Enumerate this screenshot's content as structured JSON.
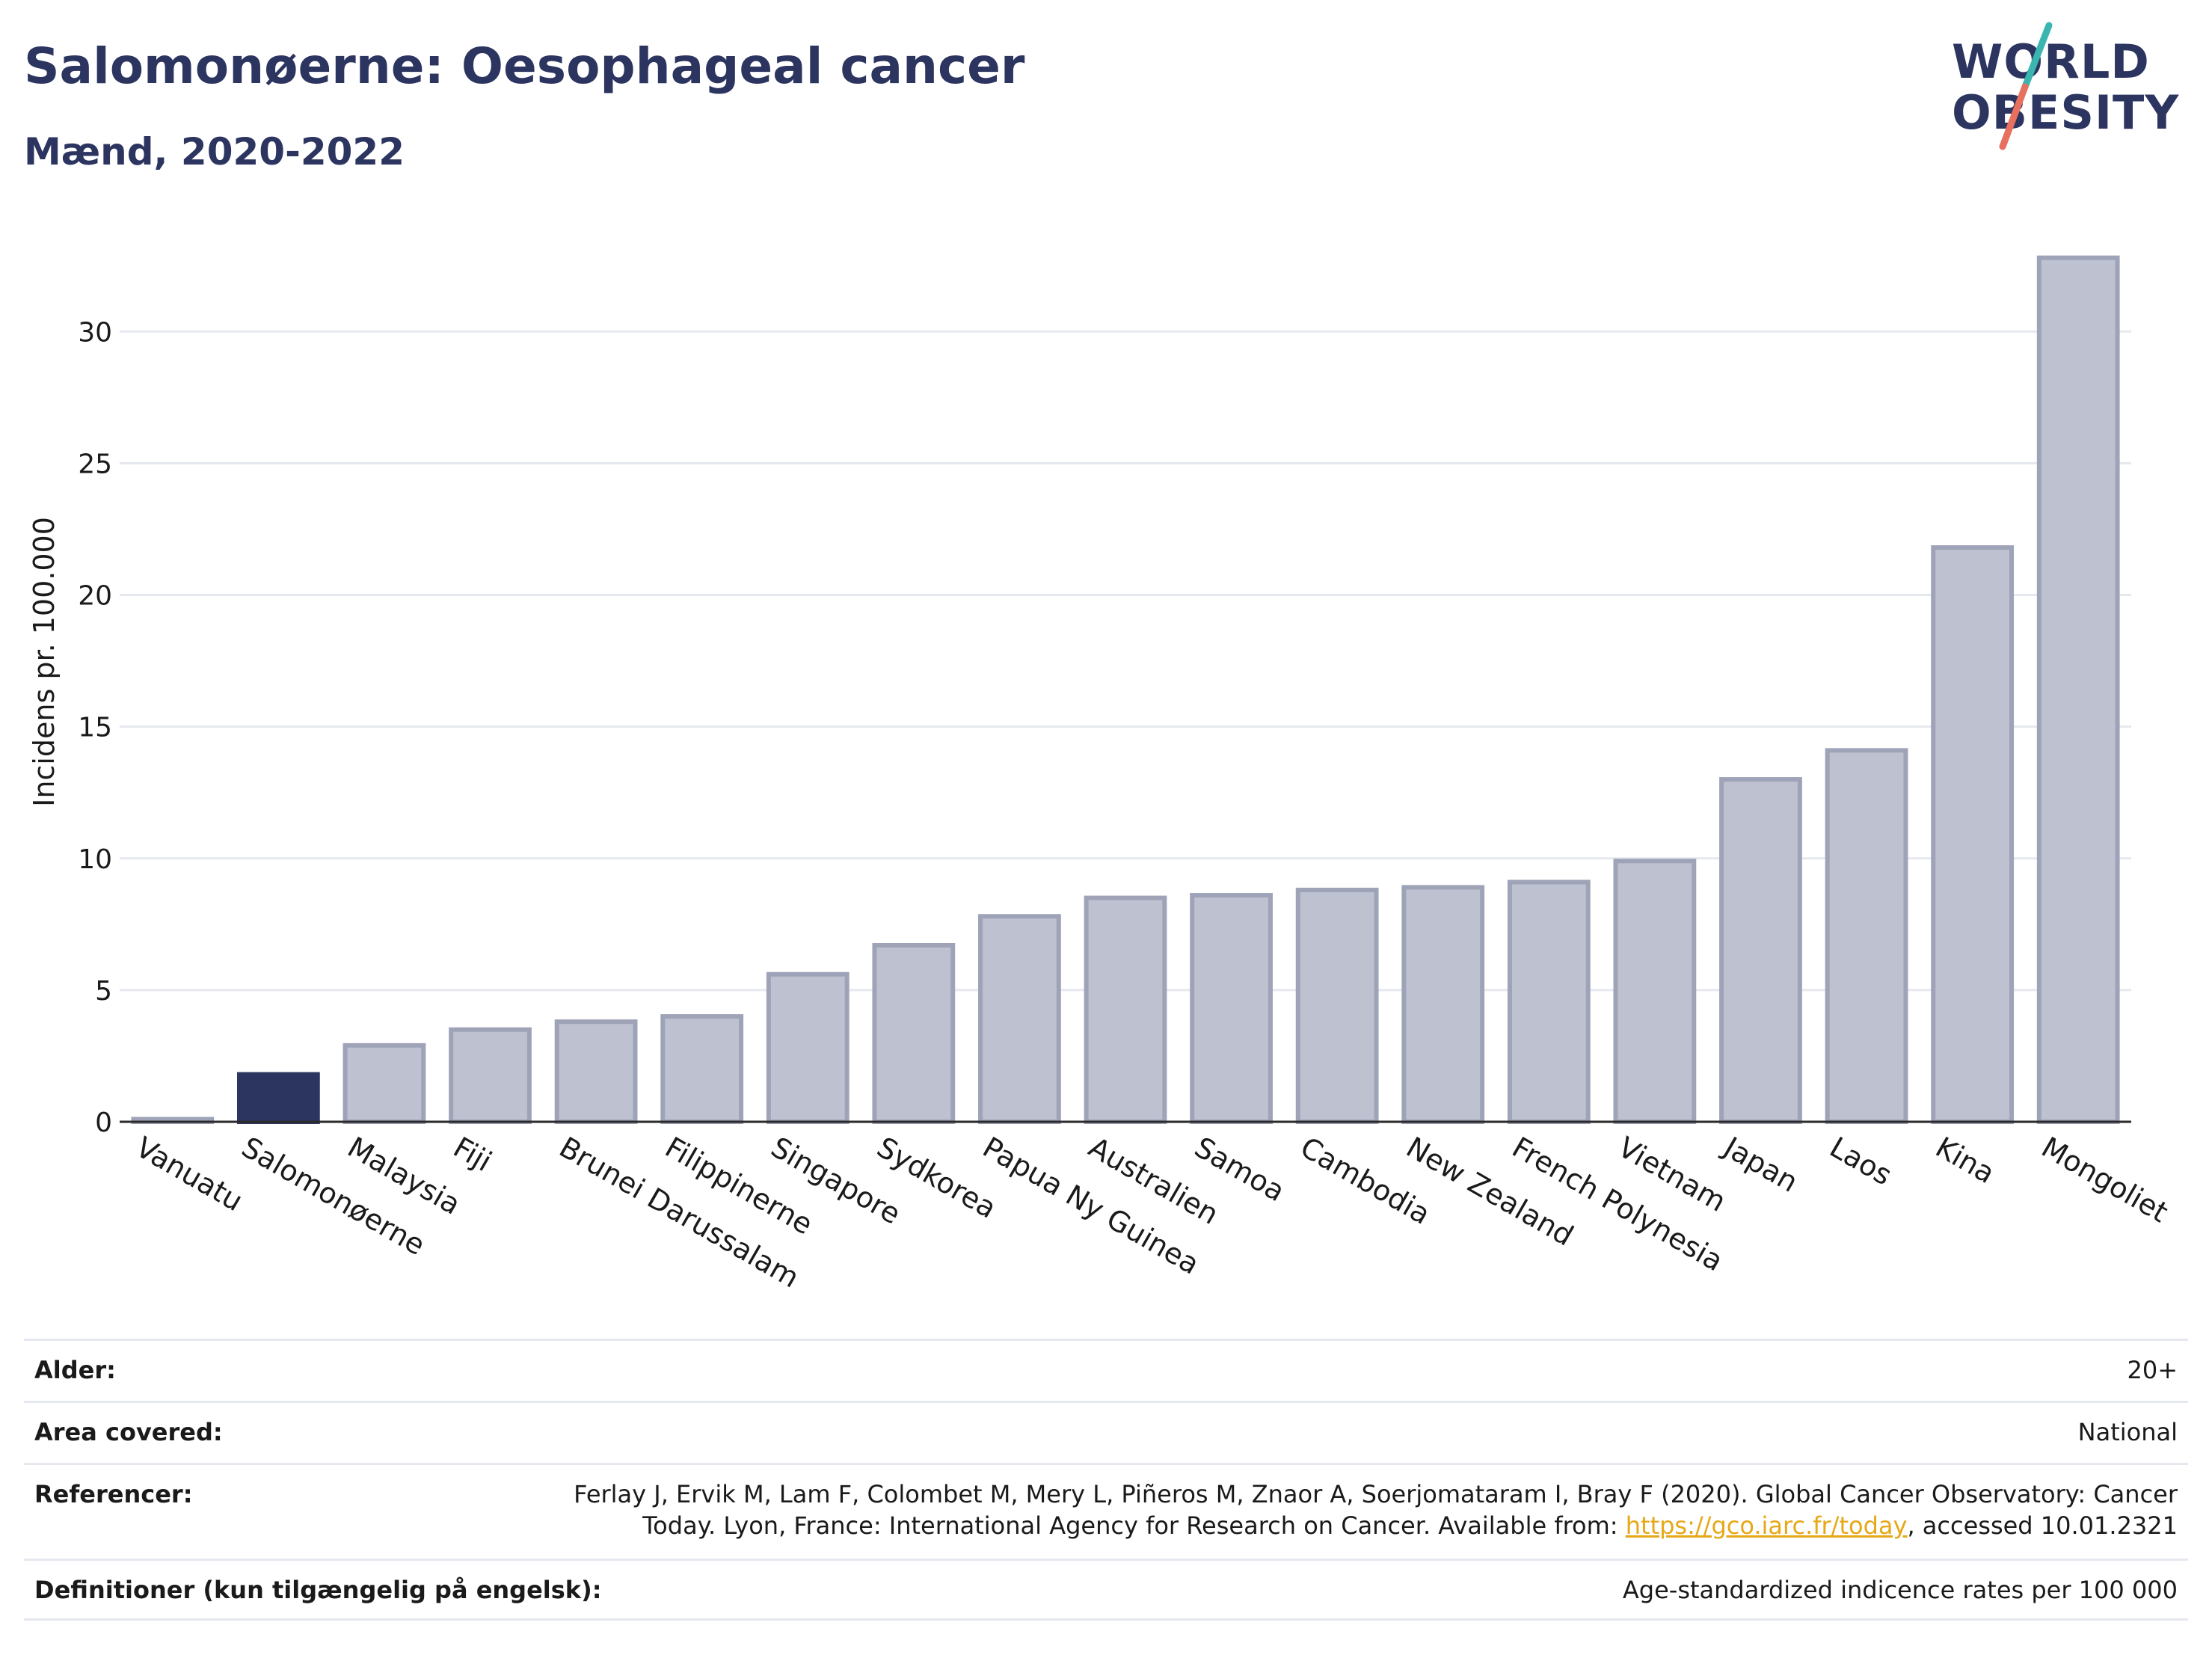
{
  "header": {
    "title": "Salomonøerne: Oesophageal cancer",
    "subtitle": "Mænd, 2020-2022"
  },
  "logo": {
    "line1": "WORLD",
    "line2": "OBESITY",
    "colors": {
      "text": "#2c3560",
      "slash_top": "#3ab5b0",
      "slash_bottom": "#e8705f"
    }
  },
  "chart_data": {
    "type": "bar",
    "ylabel": "Incidens pr. 100.000",
    "xlabel": "",
    "ylim": [
      0,
      33.5
    ],
    "yticks": [
      0,
      5,
      10,
      15,
      20,
      25,
      30
    ],
    "grid": true,
    "highlight": "Salomonøerne",
    "colors": {
      "bar": "#bec1cf",
      "bar_stroke": "#9fa3b8",
      "highlight": "#2c3560",
      "grid": "#e6e8f0",
      "axis": "#2a2a2a"
    },
    "categories": [
      "Vanuatu",
      "Salomonøerne",
      "Malaysia",
      "Fiji",
      "Brunei Darussalam",
      "Filippinerne",
      "Singapore",
      "Sydkorea",
      "Papua Ny Guinea",
      "Australien",
      "Samoa",
      "Cambodia",
      "New Zealand",
      "French Polynesia",
      "Vietnam",
      "Japan",
      "Laos",
      "Kina",
      "Mongoliet"
    ],
    "values": [
      0.1,
      1.8,
      2.9,
      3.5,
      3.8,
      4.0,
      5.6,
      6.7,
      7.8,
      8.5,
      8.6,
      8.8,
      8.9,
      9.1,
      9.9,
      13.0,
      14.1,
      21.8,
      32.8
    ]
  },
  "meta": {
    "rows": [
      {
        "label": "Alder:",
        "value": "20+"
      },
      {
        "label": "Area covered:",
        "value": "National"
      },
      {
        "label": "Referencer:",
        "value": "Ferlay J, Ervik M, Lam F, Colombet M, Mery L, Piñeros M, Znaor A, Soerjomataram I, Bray F (2020). Global Cancer Observatory: Cancer Today. Lyon, France: International Agency for Research on Cancer. Available from: ",
        "link": "https://gco.iarc.fr/today",
        "suffix": ", accessed 10.01.2321"
      },
      {
        "label": "Definitioner (kun tilgængelig på engelsk):",
        "value": "Age-standardized indicence rates per 100 000"
      }
    ]
  }
}
